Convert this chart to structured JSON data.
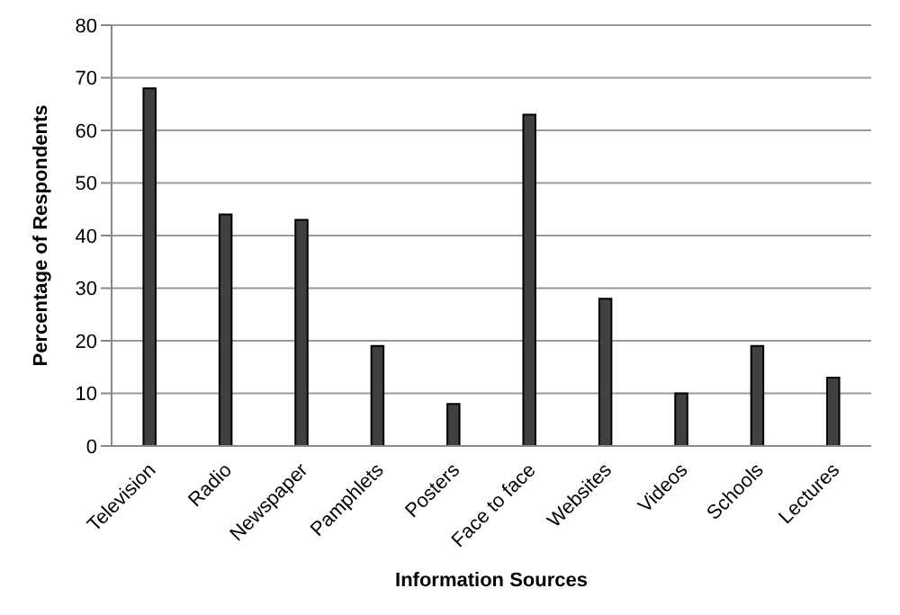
{
  "chart_data": {
    "type": "bar",
    "xlabel": "Information Sources",
    "ylabel": "Percentage of Respondents",
    "categories": [
      "Television",
      "Radio",
      "Newspaper",
      "Pamphlets",
      "Posters",
      "Face to face",
      "Websites",
      "Videos",
      "Schools",
      "Lectures"
    ],
    "values": [
      68,
      44,
      43,
      19,
      8,
      63,
      28,
      10,
      19,
      13
    ],
    "color": "#404040",
    "ylim": [
      0,
      80
    ],
    "yticks": [
      0,
      10,
      20,
      30,
      40,
      50,
      60,
      70,
      80
    ],
    "grid": "y"
  }
}
